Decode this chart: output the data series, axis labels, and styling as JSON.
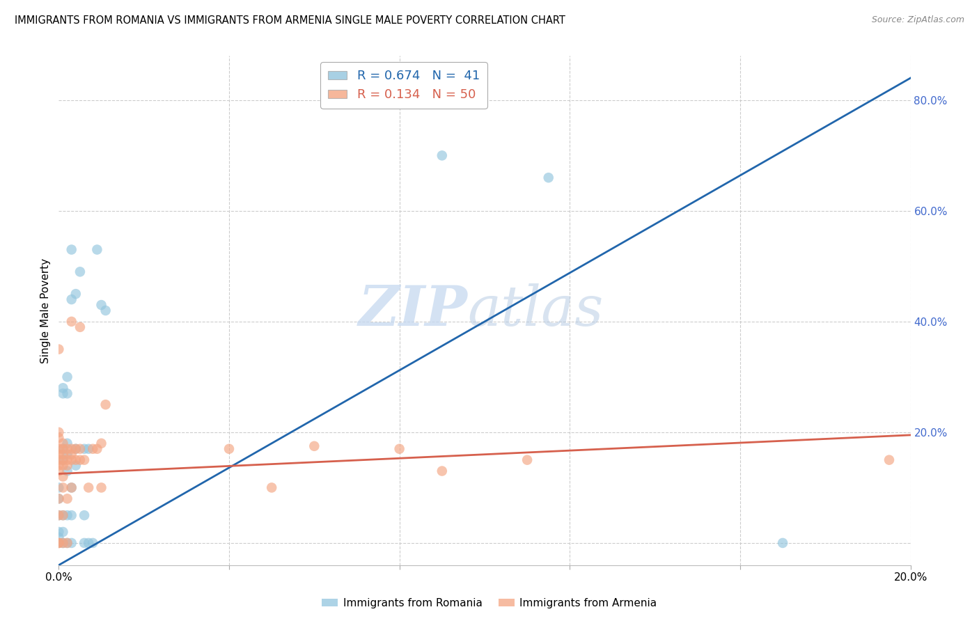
{
  "title": "IMMIGRANTS FROM ROMANIA VS IMMIGRANTS FROM ARMENIA SINGLE MALE POVERTY CORRELATION CHART",
  "source": "Source: ZipAtlas.com",
  "ylabel": "Single Male Poverty",
  "romania_color": "#92c5de",
  "armenia_color": "#f4a582",
  "trendline_romania_color": "#2166ac",
  "trendline_armenia_color": "#d6604d",
  "watermark_zip": "ZIP",
  "watermark_atlas": "atlas",
  "xmin": 0.0,
  "xmax": 0.2,
  "ymin": -0.04,
  "ymax": 0.88,
  "legend_romania_text": "R = 0.674   N =  41",
  "legend_armenia_text": "R = 0.134   N = 50",
  "trendline_romania": [
    [
      0.0,
      -0.04
    ],
    [
      0.2,
      0.84
    ]
  ],
  "trendline_armenia": [
    [
      0.0,
      0.125
    ],
    [
      0.2,
      0.195
    ]
  ],
  "romania_scatter": [
    [
      0.0,
      0.0
    ],
    [
      0.0,
      0.01
    ],
    [
      0.0,
      0.02
    ],
    [
      0.0,
      0.05
    ],
    [
      0.0,
      0.08
    ],
    [
      0.0,
      0.1
    ],
    [
      0.001,
      0.0
    ],
    [
      0.001,
      0.02
    ],
    [
      0.001,
      0.05
    ],
    [
      0.001,
      0.15
    ],
    [
      0.001,
      0.17
    ],
    [
      0.001,
      0.27
    ],
    [
      0.001,
      0.28
    ],
    [
      0.002,
      0.0
    ],
    [
      0.002,
      0.05
    ],
    [
      0.002,
      0.13
    ],
    [
      0.002,
      0.16
    ],
    [
      0.002,
      0.18
    ],
    [
      0.002,
      0.27
    ],
    [
      0.002,
      0.3
    ],
    [
      0.003,
      0.0
    ],
    [
      0.003,
      0.05
    ],
    [
      0.003,
      0.1
    ],
    [
      0.003,
      0.44
    ],
    [
      0.003,
      0.53
    ],
    [
      0.004,
      0.14
    ],
    [
      0.004,
      0.17
    ],
    [
      0.004,
      0.45
    ],
    [
      0.005,
      0.49
    ],
    [
      0.006,
      0.0
    ],
    [
      0.006,
      0.05
    ],
    [
      0.006,
      0.17
    ],
    [
      0.007,
      0.0
    ],
    [
      0.007,
      0.17
    ],
    [
      0.008,
      0.0
    ],
    [
      0.009,
      0.53
    ],
    [
      0.01,
      0.43
    ],
    [
      0.011,
      0.42
    ],
    [
      0.09,
      0.7
    ],
    [
      0.115,
      0.66
    ],
    [
      0.17,
      0.0
    ]
  ],
  "armenia_scatter": [
    [
      0.0,
      0.0
    ],
    [
      0.0,
      0.0
    ],
    [
      0.0,
      0.05
    ],
    [
      0.0,
      0.08
    ],
    [
      0.0,
      0.13
    ],
    [
      0.0,
      0.14
    ],
    [
      0.0,
      0.15
    ],
    [
      0.0,
      0.16
    ],
    [
      0.0,
      0.17
    ],
    [
      0.0,
      0.19
    ],
    [
      0.0,
      0.2
    ],
    [
      0.0,
      0.35
    ],
    [
      0.001,
      0.0
    ],
    [
      0.001,
      0.05
    ],
    [
      0.001,
      0.1
    ],
    [
      0.001,
      0.12
    ],
    [
      0.001,
      0.14
    ],
    [
      0.001,
      0.15
    ],
    [
      0.001,
      0.16
    ],
    [
      0.001,
      0.17
    ],
    [
      0.001,
      0.18
    ],
    [
      0.002,
      0.0
    ],
    [
      0.002,
      0.08
    ],
    [
      0.002,
      0.14
    ],
    [
      0.002,
      0.15
    ],
    [
      0.002,
      0.17
    ],
    [
      0.003,
      0.1
    ],
    [
      0.003,
      0.15
    ],
    [
      0.003,
      0.16
    ],
    [
      0.003,
      0.17
    ],
    [
      0.003,
      0.4
    ],
    [
      0.004,
      0.15
    ],
    [
      0.004,
      0.17
    ],
    [
      0.005,
      0.15
    ],
    [
      0.005,
      0.17
    ],
    [
      0.005,
      0.39
    ],
    [
      0.006,
      0.15
    ],
    [
      0.007,
      0.1
    ],
    [
      0.008,
      0.17
    ],
    [
      0.009,
      0.17
    ],
    [
      0.01,
      0.1
    ],
    [
      0.01,
      0.18
    ],
    [
      0.011,
      0.25
    ],
    [
      0.04,
      0.17
    ],
    [
      0.05,
      0.1
    ],
    [
      0.06,
      0.175
    ],
    [
      0.08,
      0.17
    ],
    [
      0.09,
      0.13
    ],
    [
      0.11,
      0.15
    ],
    [
      0.195,
      0.15
    ]
  ]
}
